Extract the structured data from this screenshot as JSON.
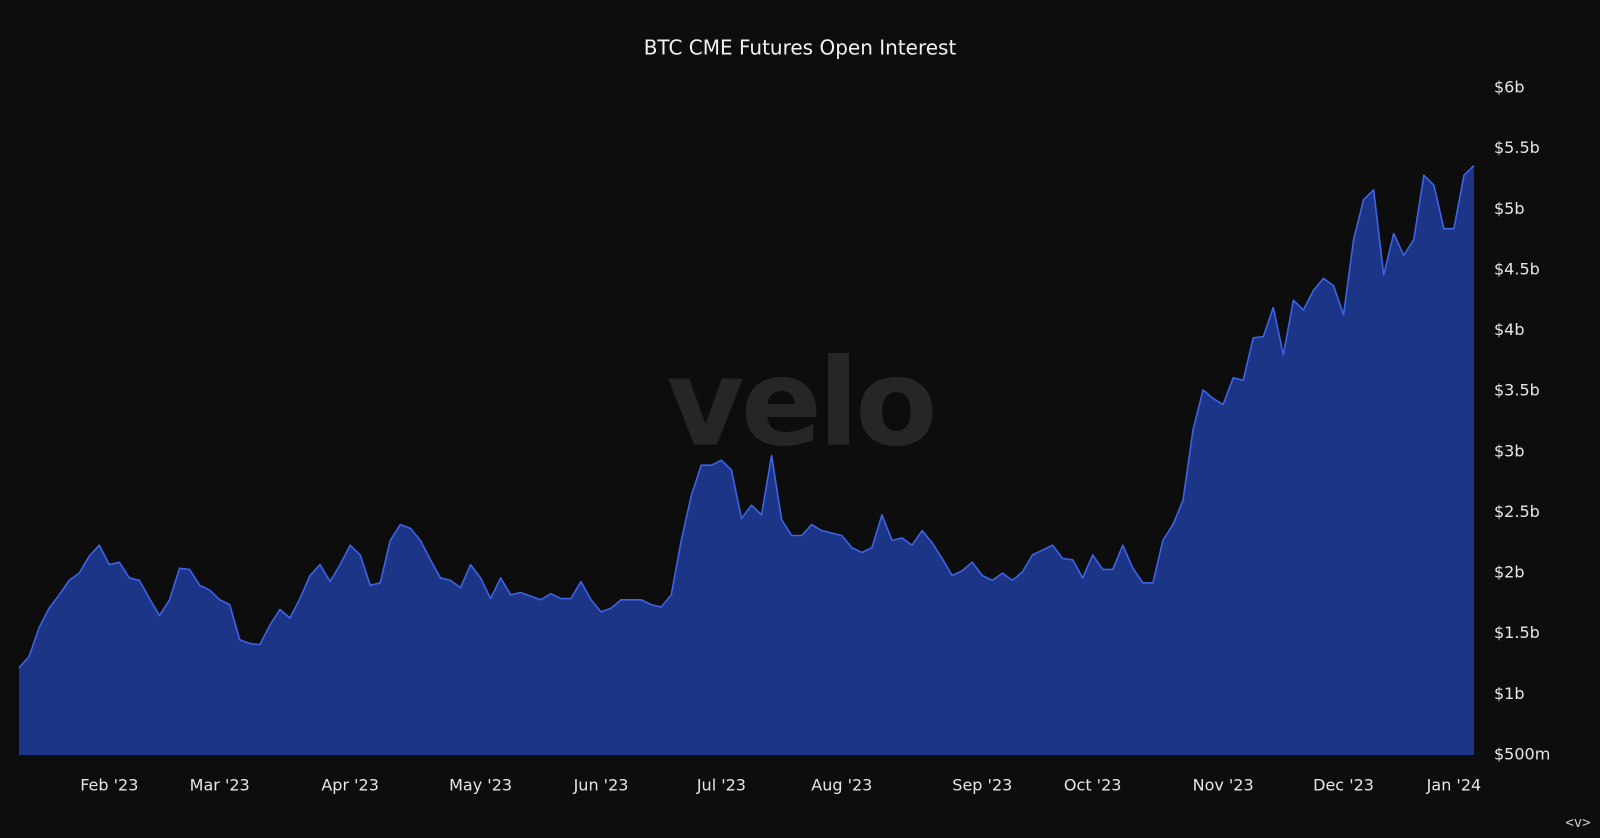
{
  "chart_data": {
    "type": "area",
    "title": "BTC CME Futures Open Interest",
    "watermark": "velo",
    "corner_label": "<v>",
    "color": "#1c3587",
    "line_color": "#3d63e6",
    "categories": [
      null,
      null,
      null,
      null,
      null,
      null,
      null,
      null,
      null,
      "Feb '23",
      null,
      null,
      null,
      null,
      null,
      null,
      null,
      null,
      null,
      null,
      "Mar '23",
      null,
      null,
      null,
      null,
      null,
      null,
      null,
      null,
      null,
      null,
      null,
      null,
      "Apr '23",
      null,
      null,
      null,
      null,
      null,
      null,
      null,
      null,
      null,
      null,
      null,
      null,
      "May '23",
      null,
      null,
      null,
      null,
      null,
      null,
      null,
      null,
      null,
      null,
      null,
      "Jun '23",
      null,
      null,
      null,
      null,
      null,
      null,
      null,
      null,
      null,
      null,
      null,
      "Jul '23",
      null,
      null,
      null,
      null,
      null,
      null,
      null,
      null,
      null,
      null,
      null,
      "Aug '23",
      null,
      null,
      null,
      null,
      null,
      null,
      null,
      null,
      null,
      null,
      null,
      null,
      null,
      "Sep '23",
      null,
      null,
      null,
      null,
      null,
      null,
      null,
      null,
      null,
      null,
      "Oct '23",
      null,
      null,
      null,
      null,
      null,
      null,
      null,
      null,
      null,
      null,
      null,
      null,
      "Nov '23",
      null,
      null,
      null,
      null,
      null,
      null,
      null,
      null,
      null,
      null,
      null,
      "Dec '23",
      null,
      null,
      null,
      null,
      null,
      null,
      null,
      null,
      null,
      null,
      "Jan '24",
      null,
      null
    ],
    "values": [
      1.22,
      1.31,
      1.55,
      1.71,
      1.82,
      1.94,
      2.0,
      2.14,
      2.23,
      2.07,
      2.09,
      1.96,
      1.94,
      1.79,
      1.65,
      1.78,
      2.04,
      2.03,
      1.9,
      1.86,
      1.78,
      1.74,
      1.45,
      1.42,
      1.41,
      1.57,
      1.7,
      1.63,
      1.79,
      1.98,
      2.07,
      1.93,
      2.07,
      2.23,
      2.15,
      1.9,
      1.92,
      2.27,
      2.4,
      2.37,
      2.27,
      2.11,
      1.96,
      1.94,
      1.88,
      2.07,
      1.96,
      1.79,
      1.96,
      1.82,
      1.84,
      1.81,
      1.78,
      1.83,
      1.79,
      1.79,
      1.93,
      1.78,
      1.68,
      1.71,
      1.78,
      1.78,
      1.78,
      1.74,
      1.72,
      1.82,
      2.27,
      2.64,
      2.89,
      2.89,
      2.93,
      2.85,
      2.45,
      2.56,
      2.48,
      2.97,
      2.44,
      2.31,
      2.31,
      2.4,
      2.35,
      2.33,
      2.31,
      2.21,
      2.17,
      2.21,
      2.48,
      2.27,
      2.29,
      2.23,
      2.35,
      2.25,
      2.12,
      1.98,
      2.02,
      2.09,
      1.98,
      1.94,
      2.0,
      1.94,
      2.01,
      2.15,
      2.19,
      2.23,
      2.12,
      2.11,
      1.96,
      2.15,
      2.03,
      2.03,
      2.23,
      2.04,
      1.92,
      1.92,
      2.27,
      2.4,
      2.6,
      3.18,
      3.51,
      3.44,
      3.39,
      3.61,
      3.59,
      3.94,
      3.95,
      4.19,
      3.8,
      4.25,
      4.17,
      4.33,
      4.43,
      4.37,
      4.13,
      4.75,
      5.08,
      5.16,
      4.46,
      4.8,
      4.62,
      4.75,
      5.28,
      5.2,
      4.84,
      4.84,
      5.28,
      5.36
    ],
    "ylim": [
      0.5,
      6
    ],
    "yticks": [
      {
        "value": 0.5,
        "label": "$500m"
      },
      {
        "value": 1,
        "label": "$1b"
      },
      {
        "value": 1.5,
        "label": "$1.5b"
      },
      {
        "value": 2,
        "label": "$2b"
      },
      {
        "value": 2.5,
        "label": "$2.5b"
      },
      {
        "value": 3,
        "label": "$3b"
      },
      {
        "value": 3.5,
        "label": "$3.5b"
      },
      {
        "value": 4,
        "label": "$4b"
      },
      {
        "value": 4.5,
        "label": "$4.5b"
      },
      {
        "value": 5,
        "label": "$5b"
      },
      {
        "value": 5.5,
        "label": "$5.5b"
      },
      {
        "value": 6,
        "label": "$6b"
      }
    ]
  }
}
